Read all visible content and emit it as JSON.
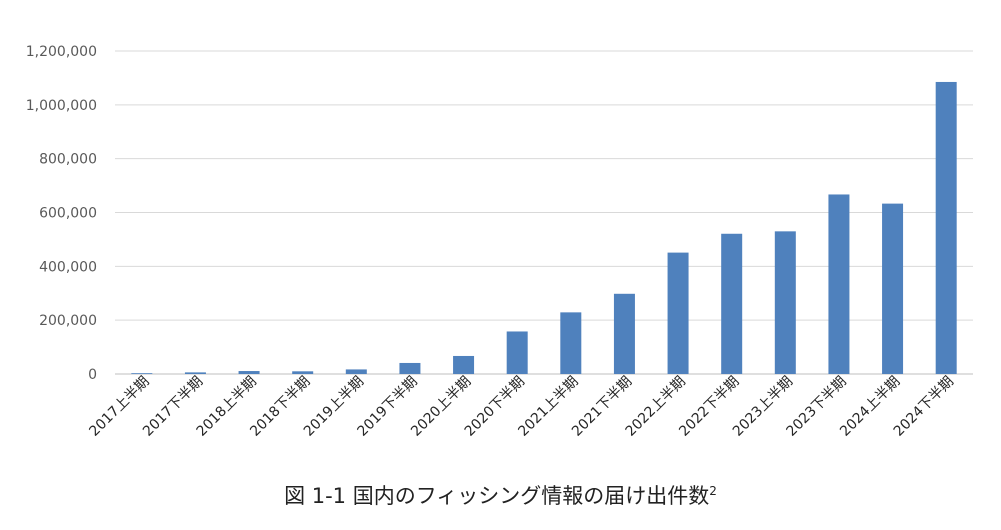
{
  "chart_data": {
    "type": "bar",
    "categories": [
      "2017上半期",
      "2017下半期",
      "2018上半期",
      "2018下半期",
      "2019上半期",
      "2019下半期",
      "2020上半期",
      "2020下半期",
      "2021上半期",
      "2021下半期",
      "2022上半期",
      "2022下半期",
      "2023上半期",
      "2023下半期",
      "2024上半期",
      "2024下半期"
    ],
    "values": [
      3000,
      6000,
      11000,
      10000,
      17000,
      41000,
      67000,
      158000,
      229000,
      298000,
      451000,
      521000,
      530000,
      667000,
      633000,
      1085000
    ],
    "ylim": [
      0,
      1200000
    ],
    "yticks": [
      "0",
      "200,000",
      "400,000",
      "600,000",
      "800,000",
      "1,000,000",
      "1,200,000"
    ],
    "grid": true,
    "color": "#4f81bd"
  },
  "caption": {
    "text": "図 1-1 国内のフィッシング情報の届け出件数",
    "sup": "2"
  }
}
